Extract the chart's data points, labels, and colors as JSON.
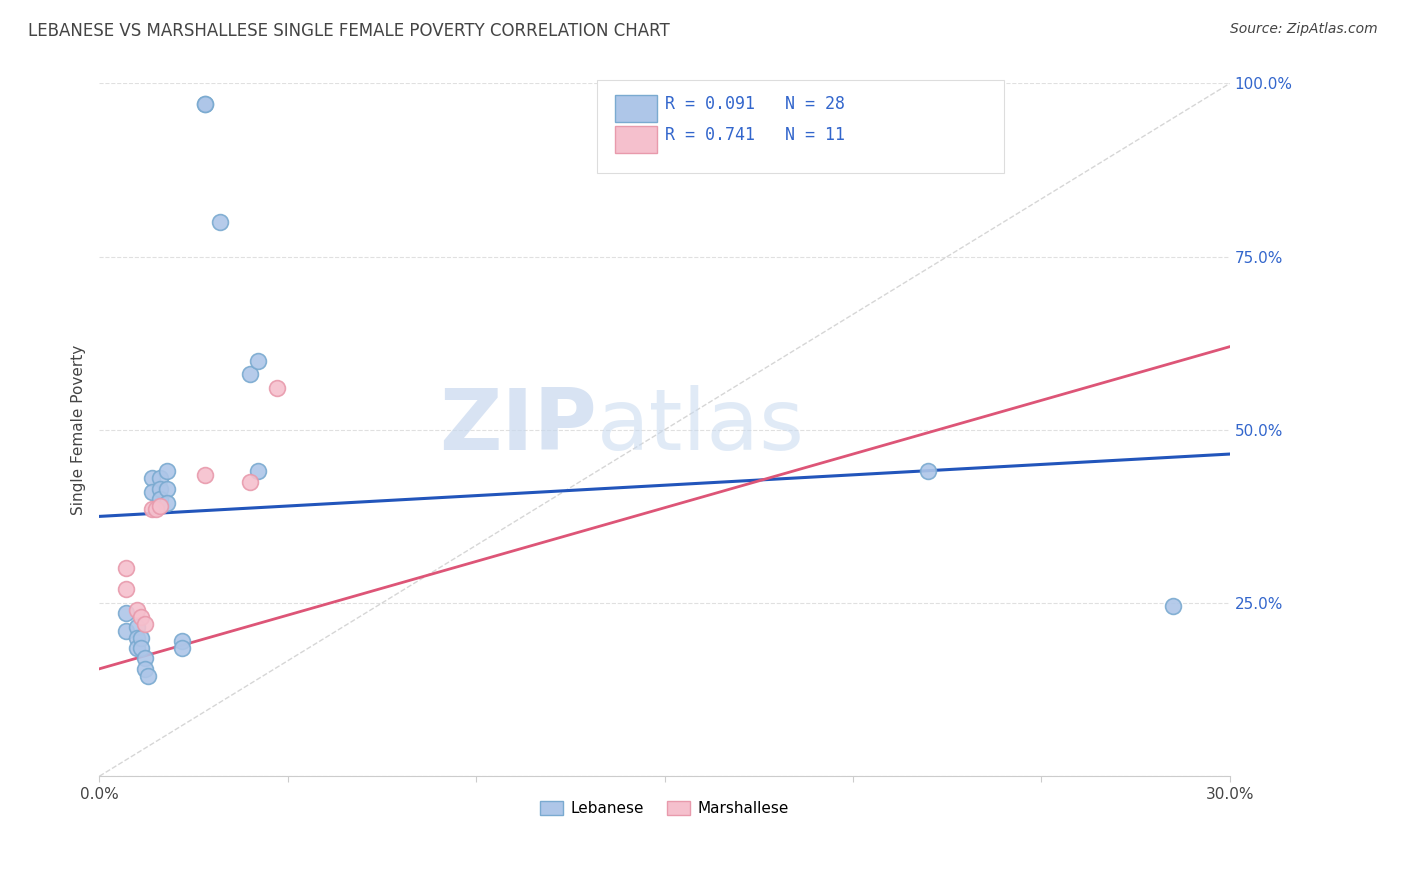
{
  "title": "LEBANESE VS MARSHALLESE SINGLE FEMALE POVERTY CORRELATION CHART",
  "source": "Source: ZipAtlas.com",
  "ylabel": "Single Female Poverty",
  "xlim": [
    0.0,
    0.3
  ],
  "ylim": [
    0.0,
    1.0
  ],
  "xtick_positions": [
    0.0,
    0.05,
    0.1,
    0.15,
    0.2,
    0.25,
    0.3
  ],
  "xtick_labels": [
    "0.0%",
    "",
    "",
    "",
    "",
    "",
    "30.0%"
  ],
  "ytick_right_vals": [
    1.0,
    0.75,
    0.5,
    0.25
  ],
  "ytick_right_labels": [
    "100.0%",
    "75.0%",
    "50.0%",
    "25.0%"
  ],
  "watermark_zip": "ZIP",
  "watermark_atlas": "atlas",
  "legend_blue_label": "Lebanese",
  "legend_pink_label": "Marshallese",
  "blue_R": "0.091",
  "blue_N": "28",
  "pink_R": "0.741",
  "pink_N": "11",
  "blue_fill": "#aec6e8",
  "pink_fill": "#f5c0cd",
  "blue_edge": "#7aaad0",
  "pink_edge": "#e89aac",
  "blue_line_color": "#2255bb",
  "pink_line_color": "#dd5577",
  "diag_color": "#cccccc",
  "text_blue": "#3366cc",
  "text_dark": "#444444",
  "blue_scatter_x": [
    0.007,
    0.007,
    0.01,
    0.01,
    0.01,
    0.011,
    0.011,
    0.012,
    0.012,
    0.013,
    0.014,
    0.014,
    0.016,
    0.016,
    0.016,
    0.018,
    0.018,
    0.018,
    0.022,
    0.022,
    0.028,
    0.028,
    0.032,
    0.04,
    0.042,
    0.042,
    0.22,
    0.285
  ],
  "blue_scatter_y": [
    0.235,
    0.21,
    0.215,
    0.2,
    0.185,
    0.2,
    0.185,
    0.17,
    0.155,
    0.145,
    0.43,
    0.41,
    0.43,
    0.415,
    0.4,
    0.44,
    0.415,
    0.395,
    0.195,
    0.185,
    0.97,
    0.97,
    0.8,
    0.58,
    0.6,
    0.44,
    0.44,
    0.245
  ],
  "pink_scatter_x": [
    0.007,
    0.007,
    0.01,
    0.011,
    0.012,
    0.014,
    0.015,
    0.016,
    0.028,
    0.04,
    0.047
  ],
  "pink_scatter_y": [
    0.27,
    0.3,
    0.24,
    0.23,
    0.22,
    0.385,
    0.385,
    0.39,
    0.435,
    0.425,
    0.56
  ],
  "blue_line_x": [
    0.0,
    0.3
  ],
  "blue_line_y": [
    0.375,
    0.465
  ],
  "pink_line_x": [
    0.0,
    0.3
  ],
  "pink_line_y": [
    0.155,
    0.62
  ],
  "diag_line_x": [
    0.0,
    0.3
  ],
  "diag_line_y": [
    0.0,
    1.0
  ],
  "grid_color": "#e0e0e0",
  "spine_color": "#cccccc",
  "bg_color": "#ffffff",
  "scatter_size": 130,
  "scatter_lw": 1.2
}
